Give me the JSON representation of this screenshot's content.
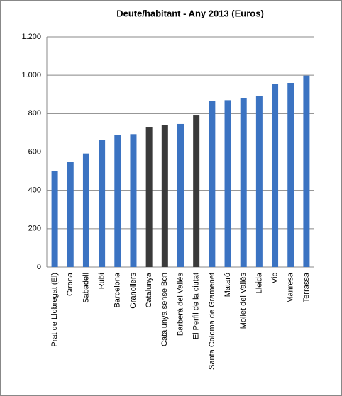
{
  "chart_data": {
    "type": "bar",
    "title": "Deute/habitant - Any 2013 (Euros)",
    "categories": [
      "Prat de Llobregat (El)",
      "Girona",
      "Sabadell",
      "Rubí",
      "Barcelona",
      "Granollers",
      "Catalunya",
      "Catalunya sense Bcn",
      "Barberà del Vallès",
      "El Perfil de la ciutat",
      "Santa Coloma de Gramenet",
      "Mataró",
      "Mollet del Vallès",
      "Lleida",
      "Vic",
      "Manresa",
      "Terrassa"
    ],
    "values": [
      500,
      550,
      592,
      663,
      690,
      693,
      731,
      742,
      746,
      790,
      864,
      870,
      882,
      890,
      955,
      960,
      998
    ],
    "colors": [
      "#3b73c2",
      "#3b73c2",
      "#3b73c2",
      "#3b73c2",
      "#3b73c2",
      "#3b73c2",
      "#3a3a3a",
      "#3a3a3a",
      "#3b73c2",
      "#3a3a3a",
      "#3b73c2",
      "#3b73c2",
      "#3b73c2",
      "#3b73c2",
      "#3b73c2",
      "#3b73c2",
      "#3b73c2"
    ],
    "ylim": [
      0,
      1200
    ],
    "yticks": [
      0,
      200,
      400,
      600,
      800,
      {
        "value": 1000,
        "label": "1.000"
      },
      {
        "value": 1200,
        "label": "1.200"
      }
    ],
    "grid": true
  }
}
